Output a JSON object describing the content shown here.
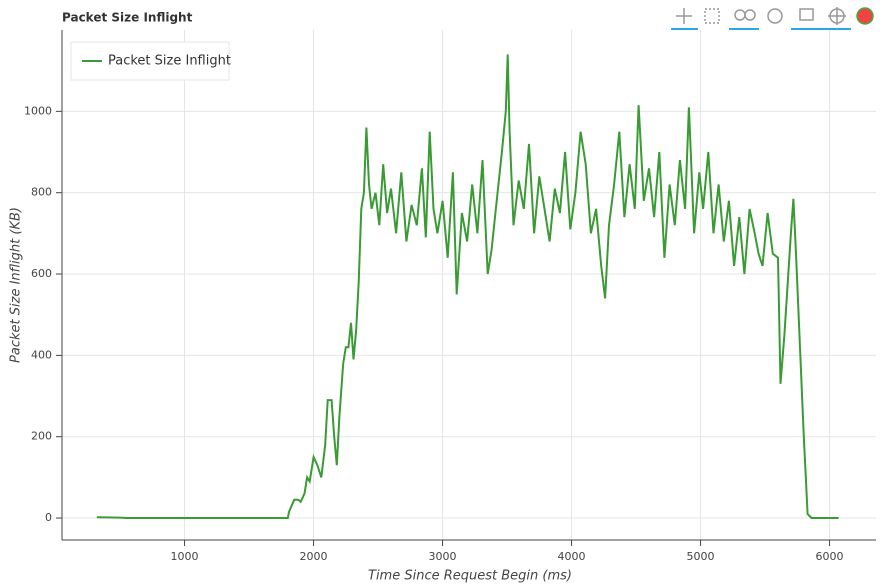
{
  "chart_data": {
    "type": "line",
    "title": "Packet Size Inflight",
    "x_label": "Time Since Request Begin (ms)",
    "y_label": "Packet Size Inflight (KB)",
    "xlim": [
      50,
      6360
    ],
    "ylim": [
      -54,
      1200
    ],
    "xticks": [
      1000,
      2000,
      3000,
      4000,
      5000,
      6000
    ],
    "yticks": [
      0,
      200,
      400,
      600,
      800,
      1000
    ],
    "grid": true,
    "legend_position": "top_left",
    "series": [
      {
        "name": "Packet Size Inflight",
        "color": "#3a9b35",
        "x": [
          320,
          500,
          550,
          1000,
          1500,
          1800,
          1810,
          1850,
          1880,
          1900,
          1930,
          1950,
          1970,
          2000,
          2030,
          2060,
          2090,
          2110,
          2140,
          2160,
          2180,
          2200,
          2230,
          2250,
          2270,
          2290,
          2310,
          2330,
          2350,
          2370,
          2390,
          2410,
          2430,
          2450,
          2480,
          2510,
          2540,
          2570,
          2600,
          2640,
          2680,
          2720,
          2760,
          2800,
          2840,
          2870,
          2900,
          2930,
          2960,
          3000,
          3040,
          3080,
          3110,
          3150,
          3190,
          3230,
          3270,
          3310,
          3350,
          3380,
          3420,
          3460,
          3490,
          3505,
          3520,
          3550,
          3590,
          3630,
          3670,
          3710,
          3750,
          3790,
          3830,
          3870,
          3910,
          3950,
          3990,
          4030,
          4070,
          4110,
          4150,
          4190,
          4230,
          4260,
          4290,
          4330,
          4370,
          4410,
          4450,
          4490,
          4520,
          4560,
          4600,
          4640,
          4680,
          4720,
          4760,
          4800,
          4840,
          4880,
          4910,
          4950,
          4990,
          5020,
          5060,
          5100,
          5140,
          5180,
          5220,
          5260,
          5300,
          5340,
          5380,
          5420,
          5450,
          5480,
          5520,
          5560,
          5600,
          5620,
          5650,
          5680,
          5700,
          5720,
          5740,
          5760,
          5800,
          5830,
          5860,
          6000,
          6070
        ],
        "values": [
          2,
          1,
          0,
          0,
          0,
          0,
          15,
          45,
          45,
          40,
          60,
          100,
          90,
          150,
          130,
          100,
          180,
          290,
          290,
          200,
          130,
          250,
          380,
          420,
          420,
          480,
          390,
          460,
          580,
          760,
          800,
          960,
          820,
          760,
          800,
          720,
          870,
          750,
          810,
          700,
          850,
          680,
          770,
          720,
          860,
          690,
          950,
          760,
          700,
          780,
          640,
          850,
          550,
          750,
          680,
          820,
          700,
          880,
          600,
          660,
          780,
          900,
          1000,
          1140,
          950,
          720,
          830,
          760,
          920,
          700,
          840,
          760,
          680,
          810,
          750,
          900,
          710,
          800,
          950,
          870,
          700,
          760,
          620,
          540,
          720,
          820,
          950,
          740,
          870,
          760,
          1015,
          780,
          860,
          740,
          900,
          640,
          820,
          720,
          880,
          760,
          1010,
          700,
          850,
          760,
          900,
          700,
          820,
          680,
          780,
          620,
          740,
          600,
          760,
          700,
          650,
          620,
          750,
          650,
          640,
          330,
          450,
          600,
          700,
          785,
          650,
          500,
          200,
          10,
          0,
          0,
          0
        ]
      }
    ]
  }
}
